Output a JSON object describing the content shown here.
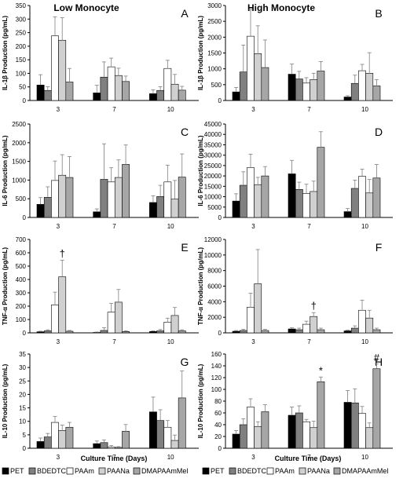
{
  "group_titles": {
    "left": "Low Monocyte",
    "right": "High Monocyte"
  },
  "x_axis_label": "Culture Time (Days)",
  "legend": [
    {
      "name": "PET",
      "color": "#000000"
    },
    {
      "name": "BDEDTC",
      "color": "#808080"
    },
    {
      "name": "PAAm",
      "color": "#ffffff"
    },
    {
      "name": "PAANa",
      "color": "#d0d0d0"
    },
    {
      "name": "DMAPAAmMel",
      "color": "#a6a6a6"
    }
  ],
  "chart_data": [
    {
      "type": "bar",
      "panel": "A",
      "group": "Low Monocyte",
      "ylabel": "IL-1β Production (pg/mL)",
      "ylim": [
        0,
        350
      ],
      "yticks": [
        0,
        50,
        100,
        150,
        200,
        250,
        300,
        350
      ],
      "categories": [
        "3",
        "7",
        "10"
      ],
      "series": [
        {
          "name": "PET",
          "values": [
            57,
            28,
            25
          ],
          "errors": [
            38,
            28,
            14
          ]
        },
        {
          "name": "BDEDTC",
          "values": [
            37,
            86,
            37
          ],
          "errors": [
            14,
            56,
            14
          ]
        },
        {
          "name": "PAAm",
          "values": [
            238,
            124,
            118
          ],
          "errors": [
            70,
            32,
            30
          ]
        },
        {
          "name": "PAANa",
          "values": [
            222,
            92,
            60
          ],
          "errors": [
            83,
            27,
            36
          ]
        },
        {
          "name": "DMAPAAmMel",
          "values": [
            68,
            70,
            38
          ],
          "errors": [
            50,
            20,
            14
          ]
        }
      ],
      "annotations": []
    },
    {
      "type": "bar",
      "panel": "B",
      "group": "High Monocyte",
      "ylabel": "IL-1β Production (pg/mL)",
      "ylim": [
        0,
        3000
      ],
      "yticks": [
        0,
        500,
        1000,
        1500,
        2000,
        2500,
        3000
      ],
      "categories": [
        "3",
        "7",
        "10"
      ],
      "series": [
        {
          "name": "PET",
          "values": [
            270,
            830,
            110
          ],
          "errors": [
            140,
            320,
            40
          ]
        },
        {
          "name": "BDEDTC",
          "values": [
            900,
            680,
            540
          ],
          "errors": [
            850,
            240,
            260
          ]
        },
        {
          "name": "PAAm",
          "values": [
            2030,
            550,
            940
          ],
          "errors": [
            840,
            170,
            200
          ]
        },
        {
          "name": "PAANa",
          "values": [
            1480,
            660,
            860
          ],
          "errors": [
            880,
            200,
            650
          ]
        },
        {
          "name": "DMAPAAmMel",
          "values": [
            1040,
            930,
            460
          ],
          "errors": [
            870,
            300,
            200
          ]
        }
      ],
      "annotations": []
    },
    {
      "type": "bar",
      "panel": "C",
      "group": "Low Monocyte",
      "ylabel": "IL-6 Production (pg/mL)",
      "ylim": [
        0,
        2500
      ],
      "yticks": [
        0,
        500,
        1000,
        1500,
        2000,
        2500
      ],
      "categories": [
        "3",
        "7",
        "10"
      ],
      "series": [
        {
          "name": "PET",
          "values": [
            350,
            150,
            400
          ],
          "errors": [
            180,
            80,
            180
          ]
        },
        {
          "name": "BDEDTC",
          "values": [
            540,
            1020,
            560
          ],
          "errors": [
            280,
            950,
            300
          ]
        },
        {
          "name": "PAAm",
          "values": [
            990,
            950,
            950
          ],
          "errors": [
            520,
            380,
            450
          ]
        },
        {
          "name": "PAANa",
          "values": [
            1130,
            1070,
            490
          ],
          "errors": [
            550,
            470,
            500
          ]
        },
        {
          "name": "DMAPAAmMel",
          "values": [
            1070,
            1420,
            1080
          ],
          "errors": [
            560,
            520,
            620
          ]
        }
      ],
      "annotations": []
    },
    {
      "type": "bar",
      "panel": "D",
      "group": "High Monocyte",
      "ylabel": "IL-6 Production (pg/mL)",
      "ylim": [
        0,
        45000
      ],
      "yticks": [
        0,
        5000,
        10000,
        15000,
        20000,
        25000,
        30000,
        35000,
        40000,
        45000
      ],
      "categories": [
        "3",
        "7",
        "10"
      ],
      "series": [
        {
          "name": "PET",
          "values": [
            7900,
            21000,
            2800
          ],
          "errors": [
            3500,
            6500,
            1500
          ]
        },
        {
          "name": "BDEDTC",
          "values": [
            15500,
            13500,
            14000
          ],
          "errors": [
            6500,
            3500,
            4000
          ]
        },
        {
          "name": "PAAm",
          "values": [
            24000,
            11500,
            19800
          ],
          "errors": [
            6500,
            4500,
            3500
          ]
        },
        {
          "name": "PAANa",
          "values": [
            15800,
            12500,
            11800
          ],
          "errors": [
            3500,
            5000,
            6500
          ]
        },
        {
          "name": "DMAPAAmMel",
          "values": [
            20000,
            33800,
            19000
          ],
          "errors": [
            4500,
            7500,
            6500
          ]
        }
      ],
      "annotations": []
    },
    {
      "type": "bar",
      "panel": "E",
      "group": "Low Monocyte",
      "ylabel": "TNF-α Production (pg/mL)",
      "ylim": [
        0,
        700
      ],
      "yticks": [
        0,
        100,
        200,
        300,
        400,
        500,
        600,
        700
      ],
      "categories": [
        "3",
        "7",
        "10"
      ],
      "series": [
        {
          "name": "PET",
          "values": [
            8,
            3,
            10
          ],
          "errors": [
            4,
            3,
            5
          ]
        },
        {
          "name": "BDEDTC",
          "values": [
            15,
            18,
            15
          ],
          "errors": [
            8,
            20,
            10
          ]
        },
        {
          "name": "PAAm",
          "values": [
            210,
            155,
            80
          ],
          "errors": [
            95,
            65,
            30
          ]
        },
        {
          "name": "PAANa",
          "values": [
            420,
            230,
            130
          ],
          "errors": [
            125,
            95,
            60
          ]
        },
        {
          "name": "DMAPAAmMel",
          "values": [
            12,
            10,
            15
          ],
          "errors": [
            6,
            5,
            8
          ]
        }
      ],
      "annotations": [
        {
          "text": "†",
          "category": "3",
          "series": "PAANa"
        }
      ]
    },
    {
      "type": "bar",
      "panel": "F",
      "group": "High Monocyte",
      "ylabel": "TNF-α Production (pg/mL)",
      "ylim": [
        0,
        12000
      ],
      "yticks": [
        0,
        2000,
        4000,
        6000,
        8000,
        10000,
        12000
      ],
      "categories": [
        "3",
        "7",
        "10"
      ],
      "series": [
        {
          "name": "PET",
          "values": [
            200,
            500,
            250
          ],
          "errors": [
            100,
            150,
            100
          ]
        },
        {
          "name": "BDEDTC",
          "values": [
            300,
            400,
            600
          ],
          "errors": [
            150,
            200,
            300
          ]
        },
        {
          "name": "PAAm",
          "values": [
            3300,
            1100,
            2900
          ],
          "errors": [
            1800,
            400,
            1300
          ]
        },
        {
          "name": "PAANa",
          "values": [
            6300,
            2100,
            1900
          ],
          "errors": [
            4400,
            500,
            1000
          ]
        },
        {
          "name": "DMAPAAmMel",
          "values": [
            300,
            400,
            400
          ],
          "errors": [
            150,
            200,
            200
          ]
        }
      ],
      "annotations": [
        {
          "text": "†",
          "category": "7",
          "series": "PAANa"
        }
      ]
    },
    {
      "type": "bar",
      "panel": "G",
      "group": "Low Monocyte",
      "ylabel": "IL-10 Production (pg/mL)",
      "ylim": [
        0,
        35
      ],
      "yticks": [
        0,
        5,
        10,
        15,
        20,
        25,
        30,
        35
      ],
      "categories": [
        "3",
        "7",
        "10"
      ],
      "series": [
        {
          "name": "PET",
          "values": [
            2.5,
            1.7,
            13.5
          ],
          "errors": [
            1.3,
            1.0,
            5.5
          ]
        },
        {
          "name": "BDEDTC",
          "values": [
            4.2,
            2.1,
            10.3
          ],
          "errors": [
            1.3,
            1.0,
            4.0
          ]
        },
        {
          "name": "PAAm",
          "values": [
            9.6,
            0.5,
            7.8
          ],
          "errors": [
            2.2,
            0.5,
            2.5
          ]
        },
        {
          "name": "PAANa",
          "values": [
            6.6,
            0.3,
            2.9
          ],
          "errors": [
            2.0,
            0.3,
            2.0
          ]
        },
        {
          "name": "DMAPAAmMel",
          "values": [
            7.8,
            6.3,
            18.7
          ],
          "errors": [
            1.8,
            2.5,
            10.0
          ]
        }
      ],
      "annotations": []
    },
    {
      "type": "bar",
      "panel": "H",
      "group": "High Monocyte",
      "ylabel": "IL-10 Production (pg/mL)",
      "ylim": [
        0,
        160
      ],
      "yticks": [
        0,
        20,
        40,
        60,
        80,
        100,
        120,
        140,
        160
      ],
      "categories": [
        "3",
        "7",
        "10"
      ],
      "series": [
        {
          "name": "PET",
          "values": [
            24,
            56,
            78
          ],
          "errors": [
            6,
            14,
            20
          ]
        },
        {
          "name": "BDEDTC",
          "values": [
            40,
            60,
            77
          ],
          "errors": [
            10,
            12,
            24
          ]
        },
        {
          "name": "PAAm",
          "values": [
            70,
            45,
            59
          ],
          "errors": [
            14,
            4,
            12
          ]
        },
        {
          "name": "PAANa",
          "values": [
            37,
            35,
            35
          ],
          "errors": [
            8,
            11,
            8
          ]
        },
        {
          "name": "DMAPAAmMel",
          "values": [
            62,
            113,
            135
          ],
          "errors": [
            12,
            8,
            8
          ]
        }
      ],
      "annotations": [
        {
          "text": "*",
          "category": "7",
          "series": "DMAPAAmMel"
        },
        {
          "text": "#",
          "category": "10",
          "series": "DMAPAAmMel"
        }
      ]
    }
  ]
}
